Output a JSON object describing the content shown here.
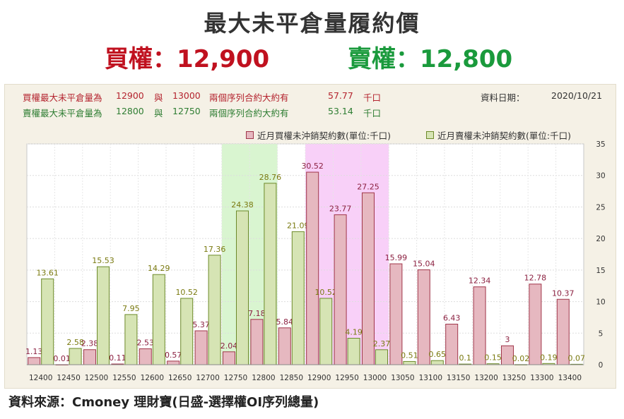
{
  "title": "最大未平倉量履約價",
  "headline": {
    "buy": "買權：12,900",
    "sell": "賣權：12,800"
  },
  "info": {
    "buy_row": {
      "label": "買權最大未平倉量為",
      "strike1": "12900",
      "conj": "與",
      "strike2": "13000",
      "desc": "兩個序列合約大約有",
      "amount": "57.77",
      "unit": "千口"
    },
    "sell_row": {
      "label": "賣權最大未平倉量為",
      "strike1": "12800",
      "conj": "與",
      "strike2": "12750",
      "desc": "兩個序列合約大約有",
      "amount": "53.14",
      "unit": "千口"
    },
    "date_label": "資料日期：",
    "date_value": "2020/10/21"
  },
  "colors": {
    "call_fill": "#e6b8c0",
    "call_stroke": "#a0364a",
    "call_label": "#8b2040",
    "put_fill": "#d6e4b4",
    "put_stroke": "#6d8a2a",
    "put_label": "#7a7a10",
    "highlight_green": "#d9f5d0",
    "highlight_pink": "#f8d0f8"
  },
  "chart_data": {
    "type": "bar",
    "categories": [
      "12400",
      "12450",
      "12500",
      "12550",
      "12600",
      "12650",
      "12700",
      "12750",
      "12800",
      "12850",
      "12900",
      "12950",
      "13000",
      "13050",
      "13100",
      "13150",
      "13200",
      "13250",
      "13300",
      "13400"
    ],
    "series": [
      {
        "name": "近月買權未沖銷契約數(單位:千口)",
        "values": [
          1.13,
          0.01,
          2.38,
          0.11,
          2.53,
          0.57,
          5.37,
          2.04,
          7.18,
          5.84,
          30.52,
          23.77,
          27.25,
          15.99,
          15.04,
          6.43,
          12.34,
          3,
          12.78,
          10.37
        ],
        "labels": [
          "1.13",
          "0.01",
          "2.38",
          "0.11",
          "2.53",
          "0.57",
          "5.37",
          "2.04",
          "7.18",
          "5.84",
          "30.52",
          "23.77",
          "27.25",
          "15.99",
          "15.04",
          "6.43",
          "12.34",
          "3",
          "12.78",
          "10.37"
        ]
      },
      {
        "name": "近月賣權未沖銷契約數(單位:千口)",
        "values": [
          13.61,
          2.58,
          15.53,
          7.95,
          14.29,
          10.52,
          17.36,
          24.38,
          28.76,
          21.09,
          10.52,
          4.19,
          2.37,
          0.51,
          0.65,
          0.1,
          0.15,
          0.02,
          0.19,
          0.07
        ],
        "labels": [
          "13.61",
          "2.58",
          "15.53",
          "7.95",
          "14.29",
          "10.52",
          "17.36",
          "24.38",
          "28.76",
          "21.09",
          "10.52",
          "4.19",
          "2.37",
          "0.51",
          "0.65",
          "0.1",
          "0.15",
          "0.02",
          "0.19",
          "0.07"
        ]
      }
    ],
    "yticks": [
      "0",
      "5",
      "10",
      "15",
      "20",
      "25",
      "30",
      "35"
    ],
    "ylim": [
      0,
      35
    ],
    "y_axis_position": "right",
    "highlight_bands": [
      {
        "from": "12750",
        "to": "12800",
        "color": "green"
      },
      {
        "from": "12900",
        "to": "13000",
        "color": "pink"
      }
    ],
    "legend_position": "top-right",
    "grid": true
  },
  "source": "資料來源：Cmoney 理財寶(日盛-選擇權OI序列總量)"
}
